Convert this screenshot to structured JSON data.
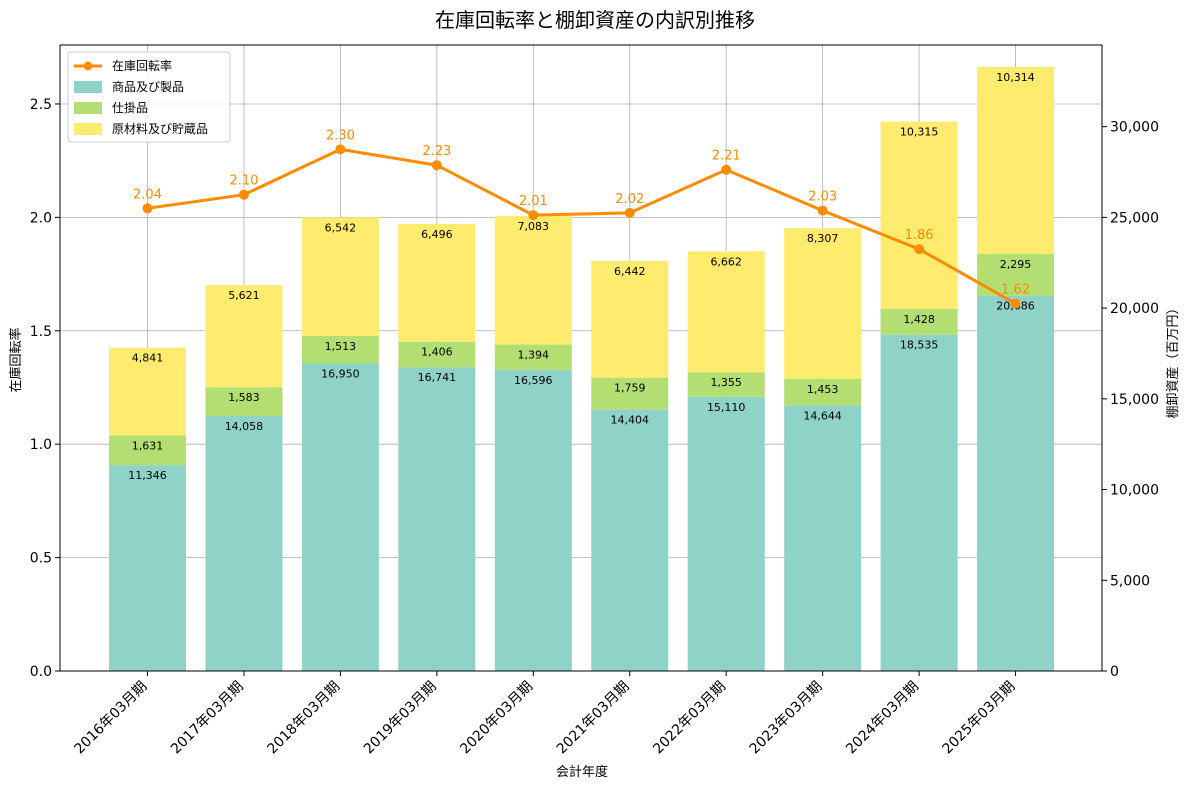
{
  "chart_data": {
    "type": "bar",
    "title": "在庫回転率と棚卸資産の内訳別推移",
    "xlabel": "会計年度",
    "ylabel_left": "在庫回転率",
    "ylabel_right": "棚卸資産（百万円）",
    "categories": [
      "2016年03月期",
      "2017年03月期",
      "2018年03月期",
      "2019年03月期",
      "2020年03月期",
      "2021年03月期",
      "2022年03月期",
      "2023年03月期",
      "2024年03月期",
      "2025年03月期"
    ],
    "stacked_series": [
      {
        "name": "商品及び製品",
        "color": "#8fd3c8",
        "values": [
          11346,
          14058,
          16950,
          16741,
          16596,
          14404,
          15110,
          14644,
          18535,
          20686
        ]
      },
      {
        "name": "仕掛品",
        "color": "#b3df72",
        "values": [
          1631,
          1583,
          1513,
          1406,
          1394,
          1759,
          1355,
          1453,
          1428,
          2295
        ]
      },
      {
        "name": "原材料及び貯蔵品",
        "color": "#ffeb6e",
        "values": [
          4841,
          5621,
          6542,
          6496,
          7083,
          6442,
          6662,
          8307,
          10315,
          10314
        ]
      }
    ],
    "line_series": {
      "name": "在庫回転率",
      "color": "#ff8c00",
      "values": [
        2.04,
        2.1,
        2.3,
        2.23,
        2.01,
        2.02,
        2.21,
        2.03,
        1.86,
        1.62
      ]
    },
    "ylim_left": [
      0,
      2.76
    ],
    "ylim_right": [
      0,
      34500
    ],
    "yticks_left": [
      "0.0",
      "0.5",
      "1.0",
      "1.5",
      "2.0",
      "2.5"
    ],
    "yticks_right": [
      "0",
      "5,000",
      "10,000",
      "15,000",
      "20,000",
      "25,000",
      "30,000"
    ],
    "grid": true,
    "legend_position": "upper-left"
  }
}
